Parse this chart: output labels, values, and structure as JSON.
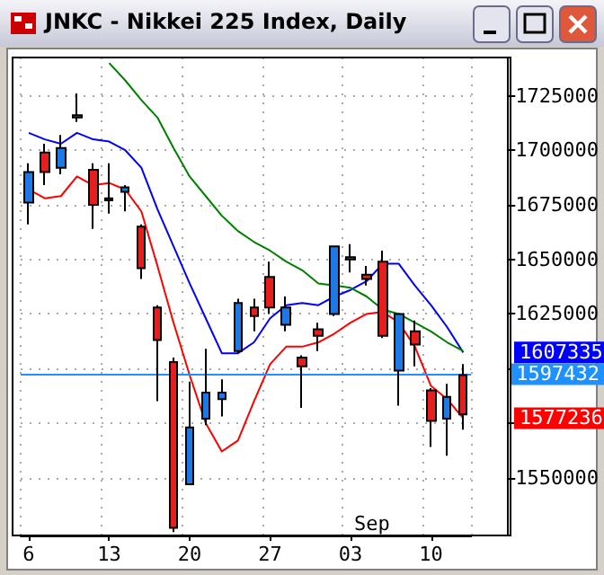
{
  "chart_data": {
    "type": "candlestick",
    "title": "JNKC - Nikkei 225 Index, Daily",
    "categories": [
      "6",
      null,
      null,
      null,
      null,
      "13",
      null,
      null,
      null,
      null,
      "20",
      null,
      null,
      null,
      null,
      "27",
      null,
      null,
      null,
      null,
      "03",
      null,
      null,
      null,
      null,
      "10",
      null,
      null
    ],
    "ohlc": [
      [
        1676000,
        1694000,
        1666000,
        1690000
      ],
      [
        1699000,
        1703000,
        1684000,
        1690000
      ],
      [
        1692000,
        1707000,
        1689000,
        1701000
      ],
      [
        1715000,
        1726000,
        1713000,
        1716000
      ],
      [
        1691000,
        1694000,
        1664000,
        1675000
      ],
      [
        1677000,
        1694000,
        1671000,
        1678000
      ],
      [
        1681000,
        1684000,
        1672000,
        1683000
      ],
      [
        1665000,
        1666000,
        1641000,
        1646000
      ],
      [
        1628000,
        1629000,
        1585000,
        1613000
      ],
      [
        1603000,
        1605000,
        1525000,
        1527000
      ],
      [
        1547000,
        1594000,
        1547000,
        1573000
      ],
      [
        1577000,
        1609000,
        1574000,
        1589000
      ],
      [
        1586000,
        1595000,
        1578000,
        1589000
      ],
      [
        1608000,
        1632000,
        1607000,
        1630000
      ],
      [
        1628000,
        1632000,
        1617000,
        1624000
      ],
      [
        1642000,
        1649000,
        1625000,
        1628000
      ],
      [
        1620000,
        1633000,
        1617000,
        1628000
      ],
      [
        1605000,
        1606000,
        1582000,
        1601000
      ],
      [
        1618000,
        1621000,
        1608000,
        1615000
      ],
      [
        1625000,
        1656000,
        1624000,
        1656000
      ],
      [
        1650000,
        1657000,
        1644000,
        1651000
      ],
      [
        1643000,
        1647000,
        1638000,
        1641000
      ],
      [
        1649000,
        1654000,
        1614000,
        1615000
      ],
      [
        1599000,
        1625000,
        1583000,
        1625000
      ],
      [
        1617000,
        1622000,
        1601000,
        1611000
      ],
      [
        1590000,
        1591000,
        1564000,
        1576000
      ],
      [
        1577000,
        1593000,
        1560000,
        1587000
      ],
      [
        1597000,
        1602000,
        1572000,
        1579000
      ]
    ],
    "colors": [
      "#1e78e6",
      "#e61e1e",
      "#1e78e6",
      "#1e78e6",
      "#e61e1e",
      "#1e78e6",
      "#1e78e6",
      "#e61e1e",
      "#e61e1e",
      "#e61e1e",
      "#1e78e6",
      "#1e78e6",
      "#1e78e6",
      "#1e78e6",
      "#e61e1e",
      "#e61e1e",
      "#1e78e6",
      "#e61e1e",
      "#e61e1e",
      "#1e78e6",
      "#1e78e6",
      "#e61e1e",
      "#e61e1e",
      "#1e78e6",
      "#e61e1e",
      "#e61e1e",
      "#1e78e6",
      "#e61e1e"
    ],
    "series": [
      {
        "type": "line",
        "color": "#ff0000",
        "values": [
          1682000,
          1678000,
          1679000,
          1688000,
          1684000,
          1685000,
          1682000,
          1672000,
          1647000,
          1621000,
          1597000,
          1575000,
          1562000,
          1567000,
          1585000,
          1602000,
          1610000,
          1610000,
          1612000,
          1616000,
          1621000,
          1625000,
          1626000,
          1621000,
          1610000,
          1592000,
          1586000,
          1577236
        ]
      },
      {
        "type": "line",
        "color": "#0000ff",
        "values": [
          1708000,
          1705000,
          1703000,
          1708000,
          1705000,
          1704000,
          1700000,
          1692000,
          1673000,
          1656000,
          1639000,
          1623000,
          1607000,
          1607000,
          1612000,
          1623000,
          1629000,
          1630000,
          1629000,
          1633000,
          1636000,
          1640000,
          1648000,
          1648000,
          1638000,
          1629000,
          1619000,
          1607335
        ]
      },
      {
        "type": "line",
        "color": "#008000",
        "values": [
          null,
          null,
          null,
          null,
          null,
          1740000,
          1732000,
          1723000,
          1715000,
          1701000,
          1688000,
          1679000,
          1670000,
          1663000,
          1658000,
          1654000,
          1649000,
          1645000,
          1639000,
          1638000,
          1637000,
          1633000,
          1627000,
          1625000,
          1621000,
          1617000,
          1612000,
          1608000
        ]
      }
    ],
    "ylim": [
      1523500,
      1742500
    ],
    "yticks": [
      1550000,
      {
        "value": 1575000,
        "label": null
      },
      {
        "value": 1600000,
        "label": null
      },
      1625000,
      1650000,
      1675000,
      1700000,
      1725000
    ],
    "ref_lines": [
      {
        "axis": "y",
        "value": 1597432,
        "label": "1597432",
        "color": "#1e90ff"
      }
    ],
    "annotations": [
      "Sep",
      "1577236",
      "1607335"
    ],
    "grid": true
  }
}
